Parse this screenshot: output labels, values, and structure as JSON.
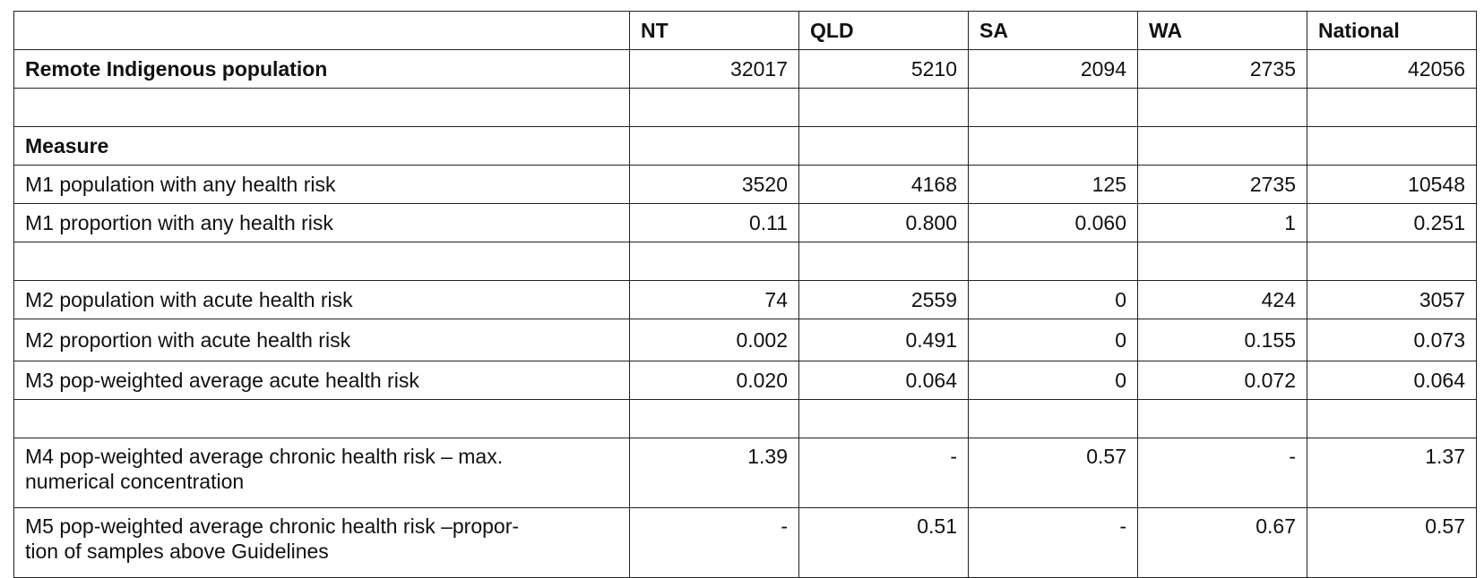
{
  "header": {
    "blank": "",
    "columns": [
      "NT",
      "QLD",
      "SA",
      "WA",
      "National"
    ]
  },
  "rows": [
    {
      "label": "Remote Indigenous population",
      "bold": true,
      "values": [
        "32017",
        "5210",
        "2094",
        "2735",
        "42056"
      ]
    },
    {
      "label": "",
      "bold": false,
      "values": [
        "",
        "",
        "",
        "",
        ""
      ]
    },
    {
      "label": "Measure",
      "bold": true,
      "values": [
        "",
        "",
        "",
        "",
        ""
      ]
    },
    {
      "label": "M1 population with any health risk",
      "bold": false,
      "values": [
        "3520",
        "4168",
        "125",
        "2735",
        "10548"
      ]
    },
    {
      "label": "M1 proportion with any health risk",
      "bold": false,
      "values": [
        "0.11",
        "0.800",
        "0.060",
        "1",
        "0.251"
      ]
    },
    {
      "label": "",
      "bold": false,
      "values": [
        "",
        "",
        "",
        "",
        ""
      ]
    },
    {
      "label": "M2 population with acute health risk",
      "bold": false,
      "values": [
        "74",
        "2559",
        "0",
        "424",
        "3057"
      ]
    },
    {
      "label": "M2 proportion with acute health risk",
      "bold": false,
      "values": [
        "0.002",
        "0.491",
        "0",
        "0.155",
        "0.073"
      ]
    },
    {
      "label": "M3 pop-weighted average acute health risk",
      "bold": false,
      "values": [
        "0.020",
        "0.064",
        "0",
        "0.072",
        "0.064"
      ]
    },
    {
      "label": "",
      "bold": false,
      "values": [
        "",
        "",
        "",
        "",
        ""
      ]
    },
    {
      "label_lines": [
        "M4 pop-weighted average chronic health risk – max.",
        "numerical concentration"
      ],
      "bold": false,
      "values": [
        "1.39",
        "-",
        "0.57",
        "-",
        "1.37"
      ]
    },
    {
      "label_lines": [
        "M5 pop-weighted average chronic health risk –propor-",
        "tion of samples above Guidelines"
      ],
      "bold": false,
      "values": [
        "-",
        "0.51",
        "-",
        "0.67",
        "0.57"
      ]
    }
  ]
}
